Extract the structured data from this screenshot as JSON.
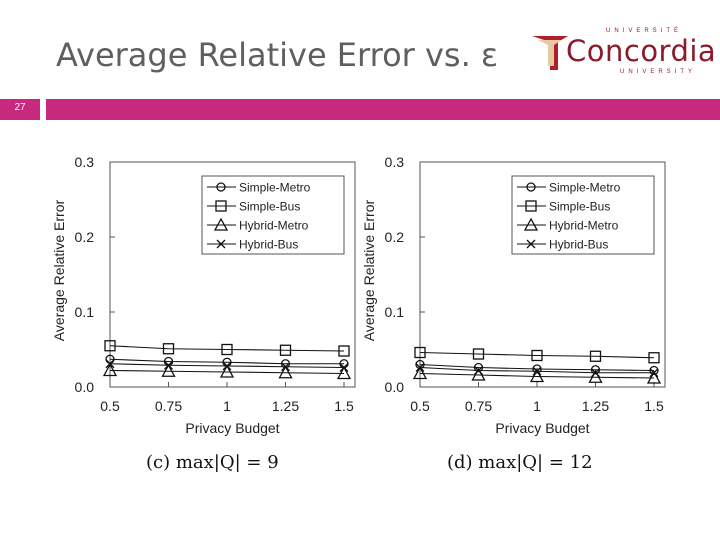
{
  "slide": {
    "title": "Average Relative Error vs. ε",
    "number": "27",
    "logo": {
      "top": "UNIVERSITÉ",
      "name": "Concordia",
      "bottom": "UNIVERSITY"
    },
    "accent_color": "#c8287d"
  },
  "chart_data": [
    {
      "type": "line",
      "caption": "(c) max|Q| = 9",
      "xlabel": "Privacy Budget",
      "ylabel": "Average Relative Error",
      "x": [
        0.5,
        0.75,
        1,
        1.25,
        1.5
      ],
      "x_ticks": [
        "0.5",
        "0.75",
        "1",
        "1.25",
        "1.5"
      ],
      "y_ticks": [
        "0.0",
        "0.1",
        "0.2",
        "0.3"
      ],
      "ylim": [
        0,
        0.3
      ],
      "legend_position": "top-right",
      "grid": false,
      "series": [
        {
          "name": "Simple-Metro",
          "marker": "circle",
          "values": [
            0.037,
            0.034,
            0.033,
            0.031,
            0.031
          ]
        },
        {
          "name": "Simple-Bus",
          "marker": "square",
          "values": [
            0.055,
            0.051,
            0.05,
            0.049,
            0.048
          ]
        },
        {
          "name": "Hybrid-Metro",
          "marker": "triangle",
          "values": [
            0.022,
            0.021,
            0.02,
            0.019,
            0.018
          ]
        },
        {
          "name": "Hybrid-Bus",
          "marker": "x",
          "values": [
            0.031,
            0.029,
            0.028,
            0.027,
            0.026
          ]
        }
      ]
    },
    {
      "type": "line",
      "caption": "(d) max|Q| = 12",
      "xlabel": "Privacy Budget",
      "ylabel": "Average Relative Error",
      "x": [
        0.5,
        0.75,
        1,
        1.25,
        1.5
      ],
      "x_ticks": [
        "0.5",
        "0.75",
        "1",
        "1.25",
        "1.5"
      ],
      "y_ticks": [
        "0.0",
        "0.1",
        "0.2",
        "0.3"
      ],
      "ylim": [
        0,
        0.3
      ],
      "legend_position": "top-right",
      "grid": false,
      "series": [
        {
          "name": "Simple-Metro",
          "marker": "circle",
          "values": [
            0.03,
            0.026,
            0.024,
            0.023,
            0.022
          ]
        },
        {
          "name": "Simple-Bus",
          "marker": "square",
          "values": [
            0.046,
            0.044,
            0.042,
            0.041,
            0.039
          ]
        },
        {
          "name": "Hybrid-Metro",
          "marker": "triangle",
          "values": [
            0.018,
            0.016,
            0.014,
            0.013,
            0.012
          ]
        },
        {
          "name": "Hybrid-Bus",
          "marker": "x",
          "values": [
            0.026,
            0.022,
            0.021,
            0.019,
            0.019
          ]
        }
      ]
    }
  ]
}
